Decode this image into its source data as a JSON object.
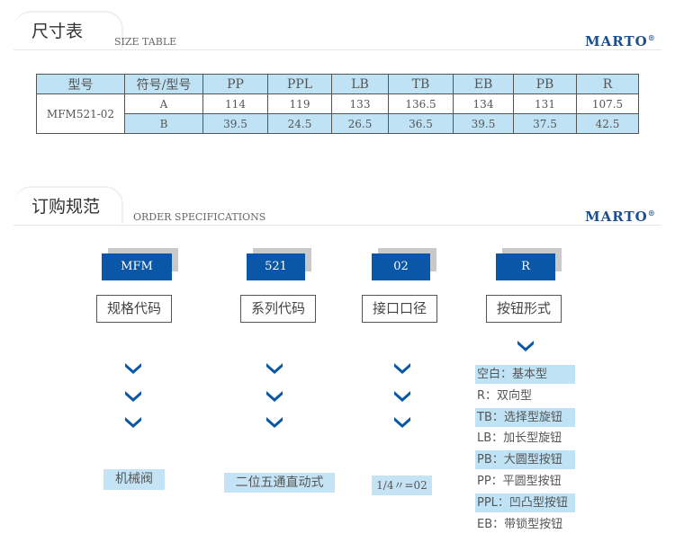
{
  "size_section": {
    "title_cn": "尺寸表",
    "title_en": "SIZE TABLE",
    "brand": "MARTO",
    "brand_mark": "®"
  },
  "size_table": {
    "headers": [
      "型号",
      "符号/型号",
      "PP",
      "PPL",
      "LB",
      "TB",
      "EB",
      "PB",
      "R"
    ],
    "model": "MFM521-02",
    "rows": [
      {
        "symbol": "A",
        "values": [
          "114",
          "119",
          "133",
          "136.5",
          "134",
          "131",
          "107.5"
        ]
      },
      {
        "symbol": "B",
        "values": [
          "39.5",
          "24.5",
          "26.5",
          "36.5",
          "39.5",
          "37.5",
          "42.5"
        ]
      }
    ]
  },
  "order_section": {
    "title_cn": "订购规范",
    "title_en": "ORDER SPECIFICATIONS",
    "brand": "MARTO",
    "brand_mark": "®"
  },
  "order_codes": [
    {
      "code": "MFM",
      "label": "规格代码",
      "result": "机械阀"
    },
    {
      "code": "521",
      "label": "系列代码",
      "result": "二位五通直动式"
    },
    {
      "code": "02",
      "label": "接口口径",
      "result": "1/4〃=02"
    },
    {
      "code": "R",
      "label": "按钮形式"
    }
  ],
  "button_options": [
    "空白：基本型",
    "R：双向型",
    "TB：选择型旋钮",
    "LB：加长型旋钮",
    "PB：大圆型按钮",
    "PP：平圆型按钮",
    "PPL：凹凸型按钮",
    "EB：带锁型按钮"
  ],
  "colors": {
    "accent": "#0b57a7",
    "highlight": "#bfe3f5"
  }
}
